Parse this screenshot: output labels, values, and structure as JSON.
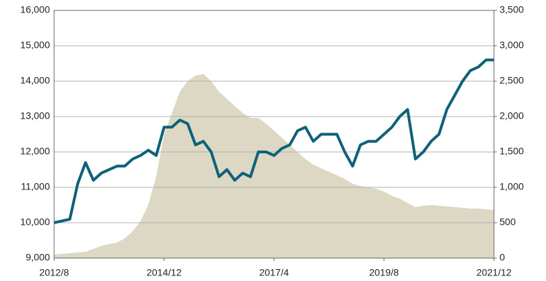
{
  "chart_data": {
    "type": "line-area-dual",
    "x": [
      "2012/8",
      "2012/10",
      "2012/12",
      "2013/2",
      "2013/4",
      "2013/6",
      "2013/8",
      "2013/10",
      "2013/12",
      "2014/2",
      "2014/4",
      "2014/6",
      "2014/8",
      "2014/10",
      "2014/12",
      "2015/2",
      "2015/4",
      "2015/6",
      "2015/8",
      "2015/10",
      "2015/12",
      "2016/2",
      "2016/4",
      "2016/6",
      "2016/8",
      "2016/10",
      "2016/12",
      "2017/2",
      "2017/4",
      "2017/6",
      "2017/8",
      "2017/10",
      "2017/12",
      "2018/2",
      "2018/4",
      "2018/6",
      "2018/8",
      "2018/10",
      "2018/12",
      "2019/2",
      "2019/4",
      "2019/6",
      "2019/8",
      "2019/10",
      "2019/12",
      "2020/2",
      "2020/4",
      "2020/6",
      "2020/8",
      "2020/10",
      "2020/12",
      "2021/2",
      "2021/4",
      "2021/6",
      "2021/8",
      "2021/10",
      "2021/12"
    ],
    "xticks": [
      "2012/8",
      "2014/12",
      "2017/4",
      "2019/8",
      "2021/12"
    ],
    "series": [
      {
        "type": "line",
        "color": "#0f6179",
        "values": [
          10000,
          10050,
          10100,
          11100,
          11700,
          11200,
          11400,
          11500,
          11600,
          11600,
          11800,
          11900,
          12050,
          11900,
          12700,
          12700,
          12900,
          12800,
          12200,
          12300,
          12000,
          11300,
          11500,
          11200,
          11400,
          11300,
          12000,
          12000,
          11900,
          12100,
          12200,
          12600,
          12700,
          12300,
          12500,
          12500,
          12500,
          12000,
          11600,
          12200,
          12300,
          12300,
          12500,
          12700,
          13000,
          13200,
          11800,
          12000,
          12300,
          12500,
          13200,
          13600,
          14000,
          14300,
          14400,
          14600,
          14600
        ]
      },
      {
        "type": "area",
        "axis": "y2",
        "color": "#dcd8c4",
        "values": [
          50,
          60,
          70,
          80,
          90,
          130,
          170,
          200,
          220,
          280,
          380,
          520,
          760,
          1150,
          1750,
          2050,
          2350,
          2500,
          2580,
          2600,
          2500,
          2350,
          2250,
          2150,
          2050,
          1980,
          1980,
          1900,
          1800,
          1700,
          1600,
          1500,
          1400,
          1320,
          1270,
          1220,
          1170,
          1120,
          1050,
          1020,
          1000,
          980,
          940,
          880,
          840,
          780,
          720,
          740,
          750,
          740,
          730,
          720,
          710,
          700,
          700,
          690,
          680
        ]
      }
    ],
    "ylim": [
      9000,
      16000
    ],
    "yticks": [
      {
        "value": 9000,
        "label": "9,000"
      },
      {
        "value": 10000,
        "label": "10,000"
      },
      {
        "value": 11000,
        "label": "11,000"
      },
      {
        "value": 12000,
        "label": "12,000"
      },
      {
        "value": 13000,
        "label": "13,000"
      },
      {
        "value": 14000,
        "label": "14,000"
      },
      {
        "value": 15000,
        "label": "15,000"
      },
      {
        "value": 16000,
        "label": "16,000"
      }
    ],
    "y2lim": [
      0,
      3500
    ],
    "y2ticks": [
      0,
      500,
      {
        "value": 1000,
        "label": "1,000"
      },
      {
        "value": 1500,
        "label": "1,500"
      },
      {
        "value": 2000,
        "label": "2,000"
      },
      {
        "value": 2500,
        "label": "2,500"
      },
      {
        "value": 3000,
        "label": "3,000"
      },
      {
        "value": 3500,
        "label": "3,500"
      }
    ],
    "grid": true
  }
}
